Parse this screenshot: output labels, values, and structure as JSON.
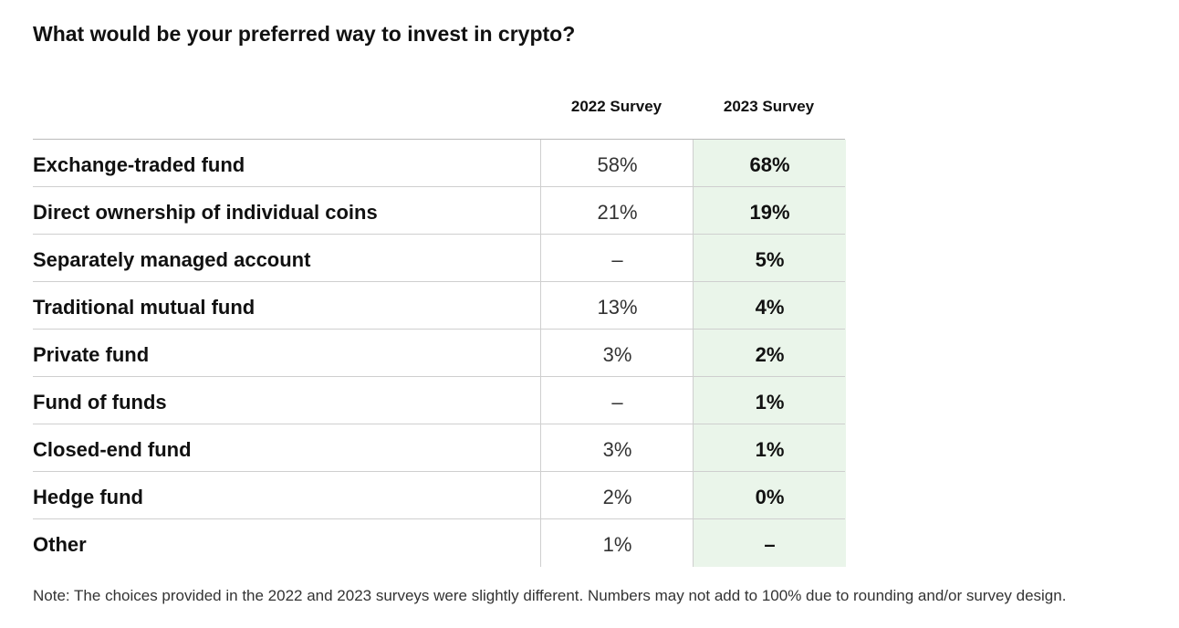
{
  "title": "What would be your preferred way to invest in crypto?",
  "table": {
    "columns": [
      "2022 Survey",
      "2023 Survey"
    ],
    "rows": [
      [
        "Exchange-traded fund",
        "58%",
        "68%"
      ],
      [
        "Direct ownership of individual coins",
        "21%",
        "19%"
      ],
      [
        "Separately managed account",
        "–",
        "5%"
      ],
      [
        "Traditional mutual fund",
        "13%",
        "4%"
      ],
      [
        "Private fund",
        "3%",
        "2%"
      ],
      [
        "Fund of funds",
        "–",
        "1%"
      ],
      [
        "Closed-end fund",
        "3%",
        "1%"
      ],
      [
        "Hedge fund",
        "2%",
        "0%"
      ],
      [
        "Other",
        "1%",
        "–"
      ]
    ]
  },
  "note": "Note: The choices provided in the 2022 and 2023 surveys were slightly different. Numbers may not add to 100% due to rounding and/or survey design."
}
